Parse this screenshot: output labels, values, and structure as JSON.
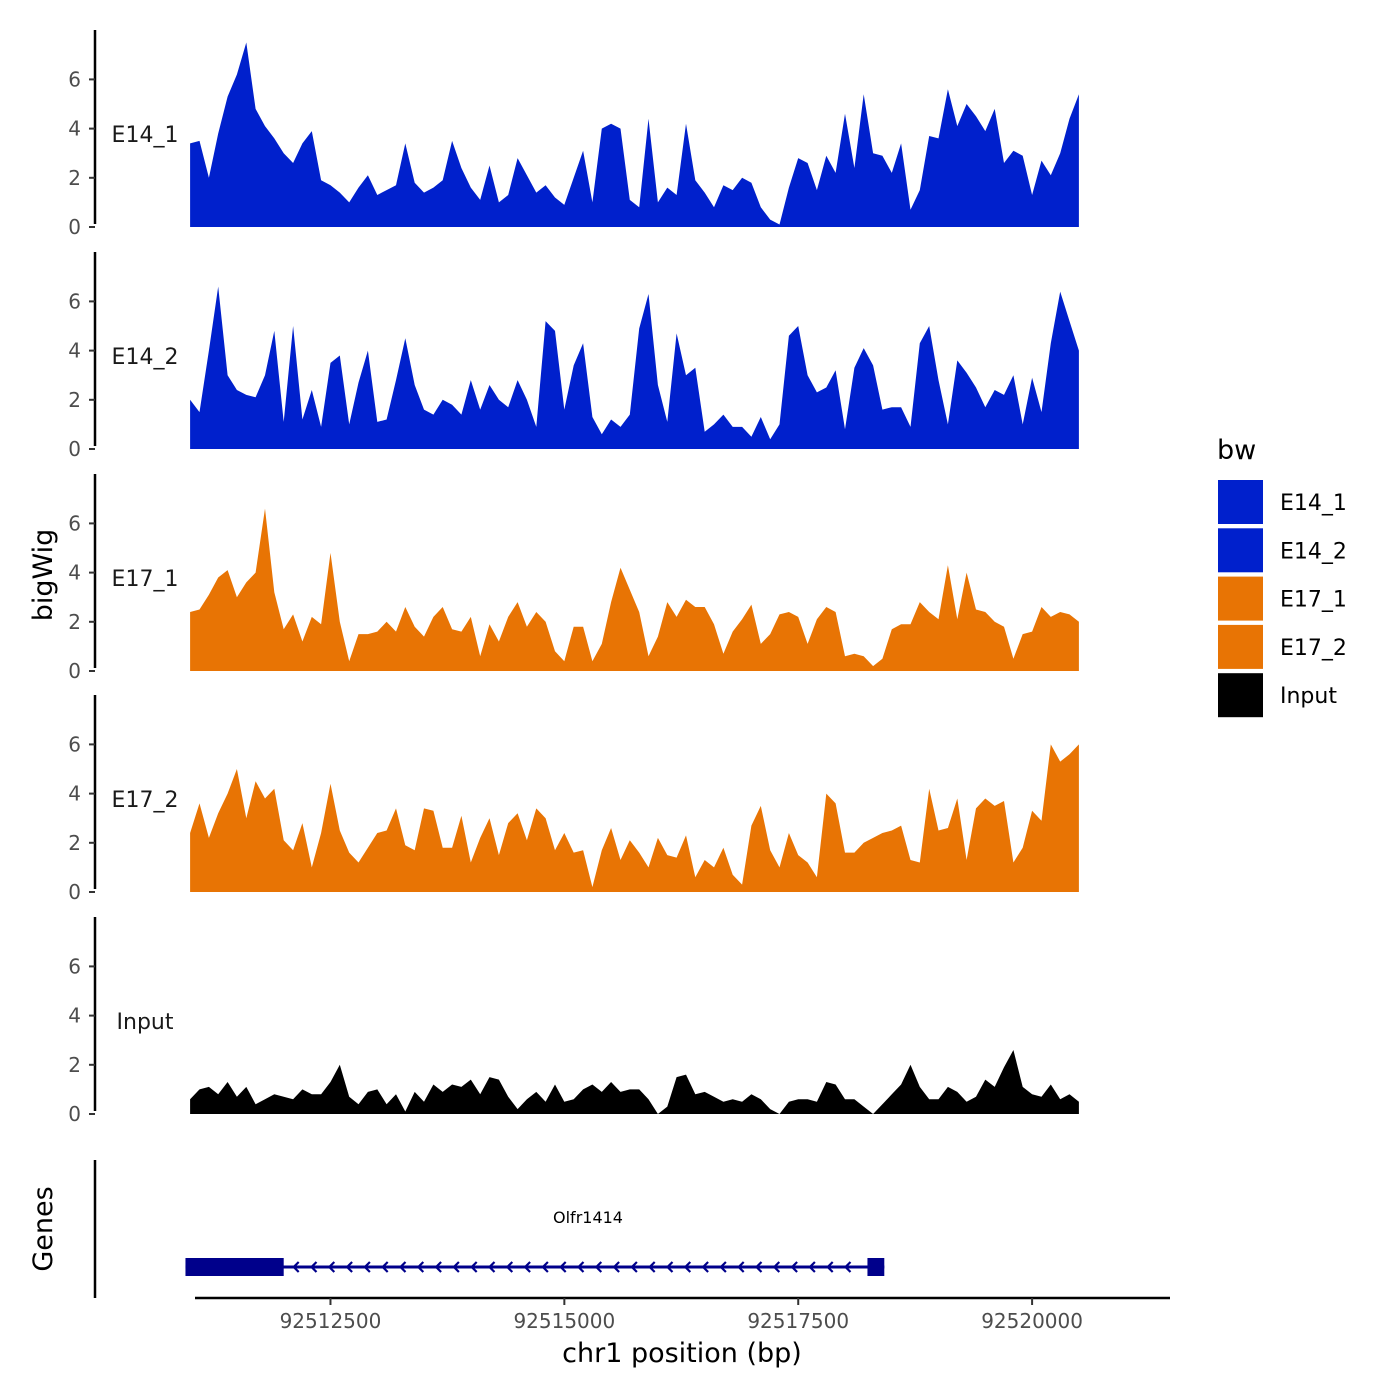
{
  "chart_data": {
    "type": "area",
    "xlabel": "chr1 position (bp)",
    "ylabel": "bigWig",
    "genes_label": "Genes",
    "chromosome": "chr1",
    "xlim": [
      92510000,
      92522000
    ],
    "ylim": [
      0,
      7.8
    ],
    "x_ticks": [
      92512500,
      92515000,
      92517500,
      92520000
    ],
    "x_tick_labels": [
      "92512500",
      "92515000",
      "92517500",
      "92520000"
    ],
    "y_ticks": [
      0,
      2,
      4,
      6
    ],
    "y_tick_labels": [
      "0",
      "2",
      "4",
      "6"
    ],
    "legend": {
      "title": "bw",
      "entries": [
        {
          "label": "E14_1",
          "color": "#0020CC"
        },
        {
          "label": "E14_2",
          "color": "#0020CC"
        },
        {
          "label": "E17_1",
          "color": "#E87404"
        },
        {
          "label": "E17_2",
          "color": "#E87404"
        },
        {
          "label": "Input",
          "color": "#000000"
        }
      ]
    },
    "series": [
      {
        "name": "E14_1",
        "color": "#0020CC",
        "x": [
          92511000,
          92511100,
          92511200,
          92511300,
          92511400,
          92511500,
          92511600,
          92511700,
          92511800,
          92511900,
          92512000,
          92512100,
          92512200,
          92512300,
          92512400,
          92512500,
          92512600,
          92512700,
          92512800,
          92512900,
          92513000,
          92513100,
          92513200,
          92513300,
          92513400,
          92513500,
          92513600,
          92513700,
          92513800,
          92513900,
          92514000,
          92514100,
          92514200,
          92514300,
          92514400,
          92514500,
          92514600,
          92514700,
          92514800,
          92514900,
          92515000,
          92515100,
          92515200,
          92515300,
          92515400,
          92515500,
          92515600,
          92515700,
          92515800,
          92515900,
          92516000,
          92516100,
          92516200,
          92516300,
          92516400,
          92516500,
          92516600,
          92516700,
          92516800,
          92516900,
          92517000,
          92517100,
          92517200,
          92517300,
          92517400,
          92517500,
          92517600,
          92517700,
          92517800,
          92517900,
          92518000,
          92518100,
          92518200,
          92518300,
          92518400,
          92518500,
          92518600,
          92518700,
          92518800,
          92518900,
          92519000,
          92519100,
          92519200,
          92519300,
          92519400,
          92519500,
          92519600,
          92519700,
          92519800,
          92519900,
          92520000,
          92520100,
          92520200,
          92520300,
          92520400,
          92520500
        ],
        "y": [
          3.4,
          3.5,
          2.0,
          3.8,
          5.3,
          6.2,
          7.5,
          4.8,
          4.1,
          3.6,
          3.0,
          2.6,
          3.4,
          3.9,
          1.9,
          1.7,
          1.4,
          1.0,
          1.6,
          2.1,
          1.3,
          1.5,
          1.7,
          3.4,
          1.8,
          1.4,
          1.6,
          1.9,
          3.5,
          2.4,
          1.6,
          1.1,
          2.5,
          1.0,
          1.3,
          2.8,
          2.1,
          1.4,
          1.7,
          1.2,
          0.9,
          2.0,
          3.1,
          1.0,
          4.0,
          4.2,
          4.0,
          1.1,
          0.8,
          4.4,
          1.0,
          1.6,
          1.3,
          4.2,
          1.9,
          1.4,
          0.8,
          1.7,
          1.5,
          2.0,
          1.8,
          0.8,
          0.3,
          0.1,
          1.6,
          2.8,
          2.6,
          1.5,
          2.9,
          2.2,
          4.6,
          2.4,
          5.4,
          3.0,
          2.9,
          2.2,
          3.4,
          0.7,
          1.5,
          3.7,
          3.6,
          5.6,
          4.1,
          5.0,
          4.5,
          3.9,
          4.8,
          2.6,
          3.1,
          2.9,
          1.3,
          2.7,
          2.1,
          3.0,
          4.4,
          5.4
        ]
      },
      {
        "name": "E14_2",
        "color": "#0020CC",
        "x": [
          92511000,
          92511100,
          92511200,
          92511300,
          92511400,
          92511500,
          92511600,
          92511700,
          92511800,
          92511900,
          92512000,
          92512100,
          92512200,
          92512300,
          92512400,
          92512500,
          92512600,
          92512700,
          92512800,
          92512900,
          92513000,
          92513100,
          92513200,
          92513300,
          92513400,
          92513500,
          92513600,
          92513700,
          92513800,
          92513900,
          92514000,
          92514100,
          92514200,
          92514300,
          92514400,
          92514500,
          92514600,
          92514700,
          92514800,
          92514900,
          92515000,
          92515100,
          92515200,
          92515300,
          92515400,
          92515500,
          92515600,
          92515700,
          92515800,
          92515900,
          92516000,
          92516100,
          92516200,
          92516300,
          92516400,
          92516500,
          92516600,
          92516700,
          92516800,
          92516900,
          92517000,
          92517100,
          92517200,
          92517300,
          92517400,
          92517500,
          92517600,
          92517700,
          92517800,
          92517900,
          92518000,
          92518100,
          92518200,
          92518300,
          92518400,
          92518500,
          92518600,
          92518700,
          92518800,
          92518900,
          92519000,
          92519100,
          92519200,
          92519300,
          92519400,
          92519500,
          92519600,
          92519700,
          92519800,
          92519900,
          92520000,
          92520100,
          92520200,
          92520300,
          92520400,
          92520500
        ],
        "y": [
          2.0,
          1.5,
          4.0,
          6.6,
          3.0,
          2.4,
          2.2,
          2.1,
          3.0,
          4.8,
          1.1,
          5.0,
          1.2,
          2.4,
          0.9,
          3.5,
          3.8,
          1.0,
          2.7,
          4.0,
          1.1,
          1.2,
          2.8,
          4.5,
          2.6,
          1.6,
          1.4,
          2.0,
          1.8,
          1.4,
          2.8,
          1.6,
          2.6,
          2.0,
          1.7,
          2.8,
          2.0,
          0.9,
          5.2,
          4.8,
          1.6,
          3.4,
          4.3,
          1.3,
          0.6,
          1.2,
          0.9,
          1.4,
          4.9,
          6.3,
          2.6,
          1.1,
          4.7,
          3.0,
          3.3,
          0.7,
          1.0,
          1.4,
          0.9,
          0.9,
          0.5,
          1.3,
          0.4,
          1.0,
          4.6,
          5.0,
          3.0,
          2.3,
          2.5,
          3.2,
          0.8,
          3.3,
          4.1,
          3.4,
          1.6,
          1.7,
          1.7,
          0.9,
          4.3,
          5.0,
          2.8,
          1.0,
          3.6,
          3.1,
          2.5,
          1.7,
          2.4,
          2.2,
          3.0,
          1.0,
          2.9,
          1.5,
          4.3,
          6.4,
          5.2,
          4.0
        ]
      },
      {
        "name": "E17_1",
        "color": "#E87404",
        "x": [
          92511000,
          92511100,
          92511200,
          92511300,
          92511400,
          92511500,
          92511600,
          92511700,
          92511800,
          92511900,
          92512000,
          92512100,
          92512200,
          92512300,
          92512400,
          92512500,
          92512600,
          92512700,
          92512800,
          92512900,
          92513000,
          92513100,
          92513200,
          92513300,
          92513400,
          92513500,
          92513600,
          92513700,
          92513800,
          92513900,
          92514000,
          92514100,
          92514200,
          92514300,
          92514400,
          92514500,
          92514600,
          92514700,
          92514800,
          92514900,
          92515000,
          92515100,
          92515200,
          92515300,
          92515400,
          92515500,
          92515600,
          92515700,
          92515800,
          92515900,
          92516000,
          92516100,
          92516200,
          92516300,
          92516400,
          92516500,
          92516600,
          92516700,
          92516800,
          92516900,
          92517000,
          92517100,
          92517200,
          92517300,
          92517400,
          92517500,
          92517600,
          92517700,
          92517800,
          92517900,
          92518000,
          92518100,
          92518200,
          92518300,
          92518400,
          92518500,
          92518600,
          92518700,
          92518800,
          92518900,
          92519000,
          92519100,
          92519200,
          92519300,
          92519400,
          92519500,
          92519600,
          92519700,
          92519800,
          92519900,
          92520000,
          92520100,
          92520200,
          92520300,
          92520400,
          92520500
        ],
        "y": [
          2.4,
          2.5,
          3.1,
          3.8,
          4.1,
          3.0,
          3.6,
          4.0,
          6.6,
          3.2,
          1.7,
          2.3,
          1.2,
          2.2,
          1.9,
          4.8,
          2.0,
          0.4,
          1.5,
          1.5,
          1.6,
          2.0,
          1.6,
          2.6,
          1.8,
          1.4,
          2.2,
          2.6,
          1.7,
          1.6,
          2.2,
          0.6,
          1.9,
          1.2,
          2.2,
          2.8,
          1.8,
          2.4,
          2.0,
          0.8,
          0.4,
          1.8,
          1.8,
          0.4,
          1.1,
          2.8,
          4.2,
          3.3,
          2.4,
          0.6,
          1.4,
          2.8,
          2.2,
          2.9,
          2.6,
          2.6,
          1.9,
          0.7,
          1.6,
          2.1,
          2.7,
          1.1,
          1.5,
          2.3,
          2.4,
          2.2,
          1.1,
          2.1,
          2.6,
          2.4,
          0.6,
          0.7,
          0.6,
          0.2,
          0.5,
          1.7,
          1.9,
          1.9,
          2.8,
          2.4,
          2.1,
          4.3,
          2.1,
          4.0,
          2.5,
          2.4,
          2.0,
          1.8,
          0.5,
          1.5,
          1.6,
          2.6,
          2.2,
          2.4,
          2.3,
          2.0
        ]
      },
      {
        "name": "E17_2",
        "color": "#E87404",
        "x": [
          92511000,
          92511100,
          92511200,
          92511300,
          92511400,
          92511500,
          92511600,
          92511700,
          92511800,
          92511900,
          92512000,
          92512100,
          92512200,
          92512300,
          92512400,
          92512500,
          92512600,
          92512700,
          92512800,
          92512900,
          92513000,
          92513100,
          92513200,
          92513300,
          92513400,
          92513500,
          92513600,
          92513700,
          92513800,
          92513900,
          92514000,
          92514100,
          92514200,
          92514300,
          92514400,
          92514500,
          92514600,
          92514700,
          92514800,
          92514900,
          92515000,
          92515100,
          92515200,
          92515300,
          92515400,
          92515500,
          92515600,
          92515700,
          92515800,
          92515900,
          92516000,
          92516100,
          92516200,
          92516300,
          92516400,
          92516500,
          92516600,
          92516700,
          92516800,
          92516900,
          92517000,
          92517100,
          92517200,
          92517300,
          92517400,
          92517500,
          92517600,
          92517700,
          92517800,
          92517900,
          92518000,
          92518100,
          92518200,
          92518300,
          92518400,
          92518500,
          92518600,
          92518700,
          92518800,
          92518900,
          92519000,
          92519100,
          92519200,
          92519300,
          92519400,
          92519500,
          92519600,
          92519700,
          92519800,
          92519900,
          92520000,
          92520100,
          92520200,
          92520300,
          92520400,
          92520500
        ],
        "y": [
          2.4,
          3.6,
          2.2,
          3.2,
          4.0,
          5.0,
          3.0,
          4.5,
          3.8,
          4.2,
          2.1,
          1.7,
          2.8,
          1.0,
          2.4,
          4.4,
          2.5,
          1.6,
          1.2,
          1.8,
          2.4,
          2.5,
          3.4,
          1.9,
          1.7,
          3.4,
          3.3,
          1.8,
          1.8,
          3.1,
          1.2,
          2.2,
          3.0,
          1.5,
          2.8,
          3.2,
          2.1,
          3.4,
          3.0,
          1.7,
          2.4,
          1.6,
          1.7,
          0.2,
          1.7,
          2.6,
          1.3,
          2.1,
          1.6,
          1.0,
          2.2,
          1.5,
          1.4,
          2.3,
          0.6,
          1.3,
          1.0,
          1.8,
          0.7,
          0.3,
          2.7,
          3.5,
          1.7,
          1.0,
          2.4,
          1.5,
          1.2,
          0.6,
          4.0,
          3.6,
          1.6,
          1.6,
          2.0,
          2.2,
          2.4,
          2.5,
          2.7,
          1.3,
          1.2,
          4.2,
          2.5,
          2.6,
          3.8,
          1.3,
          3.4,
          3.8,
          3.5,
          3.7,
          1.2,
          1.8,
          3.3,
          2.9,
          6.0,
          5.3,
          5.6,
          6.0
        ]
      },
      {
        "name": "Input",
        "color": "#000000",
        "x": [
          92511000,
          92511100,
          92511200,
          92511300,
          92511400,
          92511500,
          92511600,
          92511700,
          92511800,
          92511900,
          92512000,
          92512100,
          92512200,
          92512300,
          92512400,
          92512500,
          92512600,
          92512700,
          92512800,
          92512900,
          92513000,
          92513100,
          92513200,
          92513300,
          92513400,
          92513500,
          92513600,
          92513700,
          92513800,
          92513900,
          92514000,
          92514100,
          92514200,
          92514300,
          92514400,
          92514500,
          92514600,
          92514700,
          92514800,
          92514900,
          92515000,
          92515100,
          92515200,
          92515300,
          92515400,
          92515500,
          92515600,
          92515700,
          92515800,
          92515900,
          92516000,
          92516100,
          92516200,
          92516300,
          92516400,
          92516500,
          92516600,
          92516700,
          92516800,
          92516900,
          92517000,
          92517100,
          92517200,
          92517300,
          92517400,
          92517500,
          92517600,
          92517700,
          92517800,
          92517900,
          92518000,
          92518100,
          92518200,
          92518300,
          92518400,
          92518500,
          92518600,
          92518700,
          92518800,
          92518900,
          92519000,
          92519100,
          92519200,
          92519300,
          92519400,
          92519500,
          92519600,
          92519700,
          92519800,
          92519900,
          92520000,
          92520100,
          92520200,
          92520300,
          92520400,
          92520500
        ],
        "y": [
          0.6,
          1.0,
          1.1,
          0.8,
          1.3,
          0.7,
          1.1,
          0.4,
          0.6,
          0.8,
          0.7,
          0.6,
          1.0,
          0.8,
          0.8,
          1.3,
          2.0,
          0.7,
          0.4,
          0.9,
          1.0,
          0.4,
          0.8,
          0.1,
          0.9,
          0.5,
          1.2,
          0.9,
          1.2,
          1.1,
          1.4,
          0.8,
          1.5,
          1.4,
          0.7,
          0.2,
          0.6,
          0.9,
          0.5,
          1.2,
          0.5,
          0.6,
          1.0,
          1.2,
          0.9,
          1.3,
          0.9,
          1.0,
          1.0,
          0.6,
          0.0,
          0.3,
          1.5,
          1.6,
          0.8,
          0.9,
          0.7,
          0.5,
          0.6,
          0.5,
          0.8,
          0.6,
          0.2,
          0.0,
          0.5,
          0.6,
          0.6,
          0.5,
          1.3,
          1.2,
          0.6,
          0.6,
          0.3,
          0.0,
          0.4,
          0.8,
          1.2,
          2.0,
          1.1,
          0.6,
          0.6,
          1.1,
          0.9,
          0.5,
          0.7,
          1.4,
          1.1,
          1.9,
          2.6,
          1.1,
          0.8,
          0.7,
          1.2,
          0.6,
          0.8,
          0.5
        ]
      }
    ],
    "gene": {
      "name": "Olfr1414",
      "start": 92510950,
      "end": 92518420,
      "strand": "-",
      "color": "#00008B",
      "exons": [
        {
          "start": 92510950,
          "end": 92512000
        },
        {
          "start": 92518240,
          "end": 92518420
        }
      ]
    }
  }
}
